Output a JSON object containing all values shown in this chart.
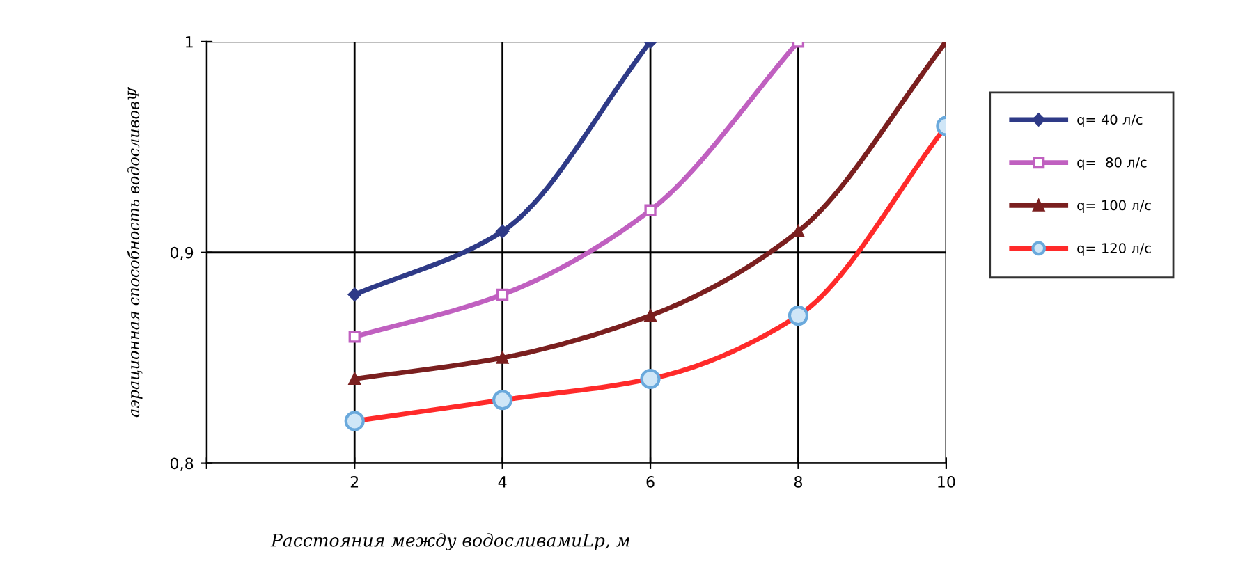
{
  "chart_data": {
    "type": "line",
    "xlabel": "Расстояния между водосливамиLp, м",
    "ylabel": "аэрационная способность водосливовΨ",
    "xlim": [
      0,
      10
    ],
    "xticks": [
      {
        "value": 0,
        "label": null
      },
      2,
      4,
      6,
      8,
      10
    ],
    "ylim": [
      0.8,
      1
    ],
    "yticks": [
      {
        "value": 0.8,
        "label": "0,8"
      },
      {
        "value": 0.9,
        "label": "0,9"
      },
      {
        "value": 1,
        "label": "1"
      }
    ],
    "grid": true,
    "legend": "right",
    "line_style": "solid",
    "series": [
      {
        "name": "q= 40 л/с",
        "color": "#2e3a87",
        "marker": "diamond",
        "x": [
          2,
          4,
          6
        ],
        "values": [
          0.88,
          0.91,
          1.0
        ]
      },
      {
        "name": "q=  80 л/с",
        "color": "#c060c0",
        "marker": "square",
        "x": [
          2,
          4,
          6,
          8
        ],
        "values": [
          0.86,
          0.88,
          0.92,
          1.0
        ]
      },
      {
        "name": "q= 100 л/с",
        "color": "#7a1f1f",
        "marker": "triangle",
        "x": [
          2,
          4,
          6,
          8,
          10
        ],
        "values": [
          0.84,
          0.85,
          0.87,
          0.91,
          1.0
        ]
      },
      {
        "name": "q= 120 л/с",
        "color": "#ff2a2a",
        "marker": "circle",
        "x": [
          2,
          4,
          6,
          8,
          10
        ],
        "values": [
          0.82,
          0.83,
          0.84,
          0.87,
          0.96
        ]
      }
    ]
  }
}
